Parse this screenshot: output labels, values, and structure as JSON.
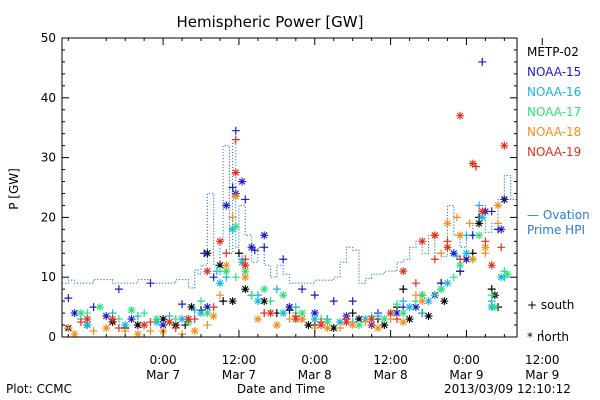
{
  "chart_data": {
    "type": "scatter",
    "title": "Hemispheric Power [GW]",
    "ylabel": "P [GW]",
    "xlabel": "Date and Time",
    "ylim": [
      0,
      50
    ],
    "xlim": [
      -16,
      56
    ],
    "y_ticks": [
      0,
      10,
      20,
      30,
      40,
      50
    ],
    "x_ticks": [
      {
        "x": 0,
        "top": "0:00",
        "bottom": "Mar 7"
      },
      {
        "x": 12,
        "top": "12:00",
        "bottom": "Mar 7"
      },
      {
        "x": 24,
        "top": "0:00",
        "bottom": "Mar 8"
      },
      {
        "x": 36,
        "top": "12:00",
        "bottom": "Mar 8"
      },
      {
        "x": 48,
        "top": "0:00",
        "bottom": "Mar 9"
      },
      {
        "x": 60,
        "top": "12:00",
        "bottom": "Mar 9"
      }
    ],
    "legend": [
      "METP-02",
      "NOAA-15",
      "NOAA-16",
      "NOAA-17",
      "NOAA-18",
      "NOAA-19"
    ],
    "legend_extra": {
      "line1": "— Ovation",
      "line2": "Prime HPI"
    },
    "marker_legend": [
      {
        "symbol": "+",
        "label": "south"
      },
      {
        "symbol": "*",
        "label": "north"
      }
    ],
    "colors": {
      "METP-02": "#000000",
      "NOAA-15": "#1a1acc",
      "NOAA-16": "#12b5e6",
      "NOAA-17": "#2ee07a",
      "NOAA-18": "#f0901a",
      "NOAA-19": "#e0301a",
      "ovation": "#2a7ad8"
    },
    "ovation_step": [
      [
        -16,
        9
      ],
      [
        -15,
        9.5
      ],
      [
        -14,
        9
      ],
      [
        -11,
        9.6
      ],
      [
        -8,
        9
      ],
      [
        -4,
        9.6
      ],
      [
        -2,
        9
      ],
      [
        2,
        9.6
      ],
      [
        4,
        8.2
      ],
      [
        5,
        11.2
      ],
      [
        5.5,
        10.5
      ],
      [
        6,
        12
      ],
      [
        7,
        24
      ],
      [
        8,
        12
      ],
      [
        9,
        16
      ],
      [
        9.5,
        32
      ],
      [
        10.5,
        14
      ],
      [
        11,
        32.5
      ],
      [
        11.5,
        15
      ],
      [
        12,
        22
      ],
      [
        13,
        17
      ],
      [
        14,
        12.5
      ],
      [
        15,
        15
      ],
      [
        16,
        12
      ],
      [
        17,
        10
      ],
      [
        18,
        12
      ],
      [
        19,
        10.5
      ],
      [
        20,
        9
      ],
      [
        24,
        9.5
      ],
      [
        27,
        10
      ],
      [
        28,
        12.5
      ],
      [
        29,
        15
      ],
      [
        30,
        14.5
      ],
      [
        31,
        9
      ],
      [
        32,
        9.8
      ],
      [
        33,
        10.5
      ],
      [
        35,
        11
      ],
      [
        37,
        12.5
      ],
      [
        38,
        13
      ],
      [
        39,
        15
      ],
      [
        40,
        16
      ],
      [
        41,
        14
      ],
      [
        42,
        17
      ],
      [
        43,
        14
      ],
      [
        44,
        13.5
      ],
      [
        45,
        22
      ],
      [
        46,
        17
      ],
      [
        47,
        15
      ],
      [
        48,
        17
      ],
      [
        49,
        19
      ],
      [
        50,
        22
      ],
      [
        51,
        17.5
      ],
      [
        52,
        19
      ],
      [
        53,
        23
      ],
      [
        54,
        27
      ],
      [
        55,
        23
      ],
      [
        56,
        23
      ]
    ],
    "series": [
      {
        "name": "METP-02",
        "south": [
          [
            -6,
            1.5
          ],
          [
            3.5,
            2
          ],
          [
            6,
            4.5
          ],
          [
            9.5,
            6
          ],
          [
            12,
            14
          ],
          [
            14,
            7
          ],
          [
            18,
            4
          ],
          [
            20,
            4.5
          ],
          [
            22,
            3
          ],
          [
            24,
            2
          ],
          [
            26,
            3
          ],
          [
            30,
            4
          ],
          [
            34,
            3
          ],
          [
            37,
            5
          ],
          [
            38,
            8
          ],
          [
            41,
            4
          ],
          [
            44,
            9
          ],
          [
            47,
            11
          ],
          [
            49,
            14
          ],
          [
            50,
            20
          ],
          [
            52,
            8
          ],
          [
            53,
            5
          ]
        ],
        "north": [
          [
            -15,
            1.5
          ],
          [
            -12,
            2
          ],
          [
            -8,
            2.5
          ],
          [
            -4,
            2
          ],
          [
            0,
            3
          ],
          [
            2,
            2
          ],
          [
            4.5,
            5
          ],
          [
            7,
            14
          ],
          [
            9,
            12
          ],
          [
            11,
            6
          ],
          [
            13,
            8
          ],
          [
            16,
            6
          ],
          [
            20,
            5
          ],
          [
            23,
            2
          ],
          [
            27,
            1.5
          ],
          [
            31,
            3
          ],
          [
            35,
            2
          ],
          [
            39,
            3
          ],
          [
            42,
            3.5
          ],
          [
            44.5,
            6
          ],
          [
            48,
            13
          ],
          [
            50,
            19
          ],
          [
            52.5,
            7
          ],
          [
            54,
            23
          ]
        ]
      },
      {
        "name": "NOAA-15",
        "south": [
          [
            -15,
            6.5
          ],
          [
            -11,
            5
          ],
          [
            -7,
            8
          ],
          [
            -2,
            9
          ],
          [
            3,
            5.5
          ],
          [
            6.5,
            14
          ],
          [
            8,
            10
          ],
          [
            11,
            25
          ],
          [
            11.5,
            34.5
          ],
          [
            13,
            23
          ],
          [
            14.5,
            14.5
          ],
          [
            16,
            15
          ],
          [
            19,
            13
          ],
          [
            22,
            8
          ],
          [
            24,
            7
          ],
          [
            27,
            6
          ],
          [
            30,
            6
          ],
          [
            34,
            4
          ],
          [
            38,
            5
          ],
          [
            41,
            7
          ],
          [
            44,
            9
          ],
          [
            47,
            11
          ],
          [
            49,
            17
          ],
          [
            50.5,
            46
          ],
          [
            52,
            21
          ],
          [
            53,
            18
          ],
          [
            54,
            23
          ]
        ],
        "north": [
          [
            -14,
            4
          ],
          [
            -9,
            3.5
          ],
          [
            -5,
            3
          ],
          [
            0,
            2
          ],
          [
            4,
            3
          ],
          [
            7,
            5
          ],
          [
            10,
            22
          ],
          [
            11.5,
            24
          ],
          [
            12.5,
            26
          ],
          [
            14,
            15
          ],
          [
            16,
            17
          ],
          [
            20,
            5
          ],
          [
            24,
            4
          ],
          [
            29,
            3.5
          ],
          [
            33,
            2
          ],
          [
            37,
            4
          ],
          [
            40,
            5
          ],
          [
            43,
            7
          ],
          [
            46,
            14
          ],
          [
            48,
            13
          ],
          [
            51,
            21
          ],
          [
            53.5,
            18
          ]
        ]
      },
      {
        "name": "NOAA-16",
        "south": [
          [
            -13,
            3
          ],
          [
            -8,
            4
          ],
          [
            -4,
            3.5
          ],
          [
            1,
            3.5
          ],
          [
            5,
            4.5
          ],
          [
            8.5,
            11
          ],
          [
            10,
            10
          ],
          [
            12.5,
            13
          ],
          [
            15,
            7
          ],
          [
            18,
            8
          ],
          [
            21,
            5
          ],
          [
            26,
            3
          ],
          [
            30,
            2.5
          ],
          [
            34,
            3.5
          ],
          [
            38,
            6
          ],
          [
            41,
            4
          ],
          [
            44,
            8
          ],
          [
            46.5,
            13.5
          ],
          [
            48,
            17
          ],
          [
            50,
            22
          ],
          [
            52,
            6
          ],
          [
            54,
            10
          ]
        ],
        "north": [
          [
            -12,
            2
          ],
          [
            -6,
            2
          ],
          [
            -1,
            2.5
          ],
          [
            3,
            3
          ],
          [
            6,
            4
          ],
          [
            9,
            9
          ],
          [
            11,
            18
          ],
          [
            12.5,
            12.5
          ],
          [
            15,
            6
          ],
          [
            19,
            4
          ],
          [
            24,
            3
          ],
          [
            28,
            2.5
          ],
          [
            32,
            3
          ],
          [
            36,
            4
          ],
          [
            39,
            5
          ],
          [
            42,
            6
          ],
          [
            45,
            9
          ],
          [
            48,
            14
          ],
          [
            50.5,
            20
          ],
          [
            52,
            5
          ],
          [
            53.5,
            10
          ]
        ]
      },
      {
        "name": "NOAA-17",
        "south": [
          [
            -12,
            4
          ],
          [
            -7,
            3
          ],
          [
            -3,
            4
          ],
          [
            2,
            3
          ],
          [
            6,
            6
          ],
          [
            9,
            11
          ],
          [
            11.5,
            10
          ],
          [
            14,
            7
          ],
          [
            17,
            6
          ],
          [
            21,
            4
          ],
          [
            25,
            3
          ],
          [
            29,
            3
          ],
          [
            33,
            3.5
          ],
          [
            37,
            5.5
          ],
          [
            40,
            6
          ],
          [
            43,
            7
          ],
          [
            46,
            10
          ],
          [
            49,
            13
          ],
          [
            52,
            7
          ],
          [
            54,
            11
          ]
        ],
        "north": [
          [
            -13,
            4
          ],
          [
            -10,
            5
          ],
          [
            -5,
            4.5
          ],
          [
            -1,
            3
          ],
          [
            4,
            2.5
          ],
          [
            7,
            4
          ],
          [
            10,
            11
          ],
          [
            11.5,
            18.5
          ],
          [
            13,
            11
          ],
          [
            16,
            8
          ],
          [
            19,
            7
          ],
          [
            22,
            4
          ],
          [
            26,
            2.5
          ],
          [
            31,
            2
          ],
          [
            35,
            3
          ],
          [
            38,
            4
          ],
          [
            41,
            7
          ],
          [
            44,
            8
          ],
          [
            47,
            12
          ],
          [
            50,
            17
          ],
          [
            52.5,
            5
          ],
          [
            54.5,
            10.5
          ]
        ]
      },
      {
        "name": "NOAA-18",
        "south": [
          [
            -15,
            1.5
          ],
          [
            -11,
            1
          ],
          [
            -6,
            1
          ],
          [
            -2,
            1
          ],
          [
            3,
            0.5
          ],
          [
            7,
            2
          ],
          [
            9,
            7
          ],
          [
            11,
            20
          ],
          [
            13,
            12
          ],
          [
            16,
            4
          ],
          [
            20,
            3
          ],
          [
            24,
            1.5
          ],
          [
            28,
            1.5
          ],
          [
            32,
            2.5
          ],
          [
            36,
            3
          ],
          [
            40,
            7
          ],
          [
            44,
            14
          ],
          [
            46.5,
            20
          ],
          [
            48.5,
            19
          ],
          [
            51,
            14
          ],
          [
            53,
            19
          ]
        ],
        "north": [
          [
            -14,
            0.5
          ],
          [
            -9,
            1.5
          ],
          [
            -4,
            0.5
          ],
          [
            0,
            1
          ],
          [
            5,
            1
          ],
          [
            8,
            3.5
          ],
          [
            10,
            12
          ],
          [
            11.5,
            23.5
          ],
          [
            13,
            10
          ],
          [
            15,
            3
          ],
          [
            18,
            2
          ],
          [
            22,
            3
          ],
          [
            26,
            1.5
          ],
          [
            30,
            2
          ],
          [
            34,
            1.5
          ],
          [
            38,
            2.5
          ],
          [
            41,
            6
          ],
          [
            43,
            17
          ],
          [
            45,
            19
          ],
          [
            47,
            17
          ],
          [
            49,
            13
          ],
          [
            51,
            15
          ],
          [
            53,
            22
          ]
        ]
      },
      {
        "name": "NOAA-19",
        "south": [
          [
            -13,
            2.5
          ],
          [
            -7,
            1.5
          ],
          [
            -2,
            2.5
          ],
          [
            2,
            1.5
          ],
          [
            5,
            3
          ],
          [
            8,
            5
          ],
          [
            10,
            14
          ],
          [
            11.5,
            33
          ],
          [
            13,
            13
          ],
          [
            16,
            4
          ],
          [
            21,
            3.5
          ],
          [
            25,
            2.5
          ],
          [
            29,
            3
          ],
          [
            33,
            2
          ],
          [
            37,
            3
          ],
          [
            40,
            9
          ],
          [
            43,
            13
          ],
          [
            45,
            16
          ],
          [
            47,
            13
          ],
          [
            49.5,
            28.5
          ],
          [
            51,
            16
          ],
          [
            53.5,
            15
          ]
        ],
        "north": [
          [
            -12,
            3
          ],
          [
            -8,
            3
          ],
          [
            -3,
            2
          ],
          [
            1,
            2.5
          ],
          [
            4,
            3
          ],
          [
            7,
            11
          ],
          [
            9,
            16
          ],
          [
            11.5,
            27.5
          ],
          [
            13,
            12
          ],
          [
            17,
            4
          ],
          [
            21,
            3
          ],
          [
            25,
            2
          ],
          [
            29,
            2.5
          ],
          [
            33,
            3
          ],
          [
            36,
            4
          ],
          [
            38,
            11
          ],
          [
            41,
            16
          ],
          [
            43,
            17
          ],
          [
            45,
            15
          ],
          [
            47,
            37
          ],
          [
            49,
            29
          ],
          [
            50.5,
            21
          ],
          [
            52,
            12
          ],
          [
            54,
            32
          ]
        ]
      }
    ]
  },
  "footer": {
    "plot_label": "Plot: CCMC",
    "timestamp": "2013/03/09 12:10:12"
  }
}
